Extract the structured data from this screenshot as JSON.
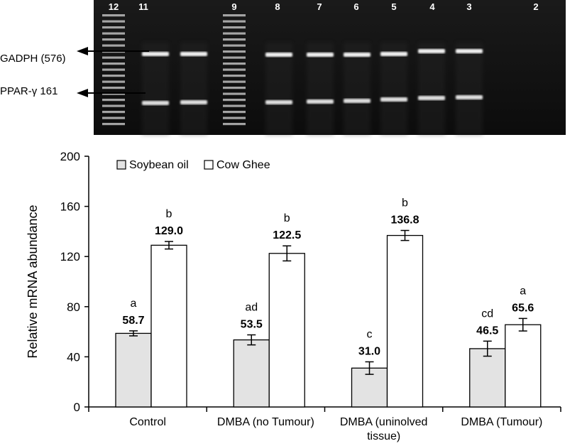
{
  "gel": {
    "lane_numbers": [
      "12",
      "11",
      "9",
      "8",
      "7",
      "6",
      "5",
      "4",
      "3",
      "2"
    ],
    "markers": {
      "gadph": "GADPH (576)",
      "ppar": "PPAR-γ 161"
    }
  },
  "chart_data": {
    "type": "bar",
    "categories": [
      "Control",
      "DMBA (no Tumour)",
      "DMBA (uninolved tissue)",
      "DMBA (Tumour)"
    ],
    "category_lines": [
      [
        "Control"
      ],
      [
        "DMBA (no Tumour)"
      ],
      [
        "DMBA (uninolved",
        "tissue)"
      ],
      [
        "DMBA (Tumour)"
      ]
    ],
    "series": [
      {
        "name": "Soybean oil",
        "color": "#e3e3e3",
        "values": [
          58.7,
          53.5,
          31.0,
          46.5
        ],
        "errors": [
          2,
          4,
          5,
          6
        ],
        "labels": [
          "58.7",
          "53.5",
          "31.0",
          "46.5"
        ],
        "letters": [
          "a",
          "ad",
          "c",
          "cd"
        ]
      },
      {
        "name": "Cow Ghee",
        "color": "#ffffff",
        "values": [
          129.0,
          122.5,
          136.8,
          65.6
        ],
        "errors": [
          3,
          6,
          4,
          5
        ],
        "labels": [
          "129.0",
          "122.5",
          "136.8",
          "65.6"
        ],
        "letters": [
          "b",
          "b",
          "b",
          "a"
        ]
      }
    ],
    "ylabel": "Relative mRNA abundance",
    "xlabel": "",
    "ylim": [
      0,
      200
    ],
    "yticks": [
      "0",
      "40",
      "80",
      "120",
      "160",
      "200"
    ],
    "grid": false,
    "legend": "top-left"
  }
}
